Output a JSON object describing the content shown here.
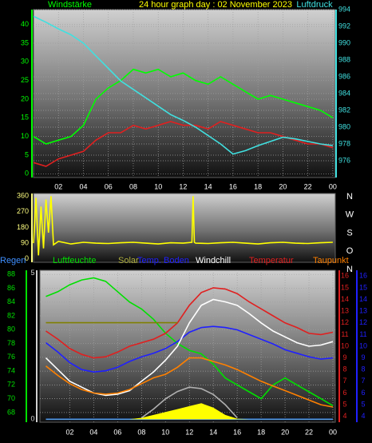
{
  "chart_data": [
    {
      "type": "line",
      "title": "24 hour graph day : 02 November 2023",
      "x": [
        0,
        1,
        2,
        3,
        4,
        5,
        6,
        7,
        8,
        9,
        10,
        11,
        12,
        13,
        14,
        15,
        16,
        17,
        18,
        19,
        20,
        21,
        22,
        23,
        24
      ],
      "xlim": [
        0,
        24.2
      ],
      "xticks": [
        {
          "value": 2,
          "label": "02"
        },
        {
          "value": 4,
          "label": "04"
        },
        {
          "value": 6,
          "label": "06"
        },
        {
          "value": 8,
          "label": "08"
        },
        10,
        12,
        14,
        16,
        18,
        20,
        22,
        {
          "value": 24,
          "label": "00"
        }
      ],
      "ylim": [
        -1,
        44
      ],
      "yticks": [
        0,
        5,
        10,
        15,
        20,
        25,
        30,
        35,
        40
      ],
      "y2lim": [
        974,
        994
      ],
      "y2ticks": [
        976,
        978,
        980,
        982,
        984,
        986,
        988,
        990,
        992,
        994
      ],
      "grid": true,
      "series": [
        {
          "name": "Windstärke",
          "color": "#00ff00",
          "values": [
            10,
            8,
            9,
            10,
            13,
            20,
            23,
            25,
            28,
            27,
            28,
            26,
            27,
            25,
            24,
            26,
            24,
            22,
            20,
            21,
            20,
            19,
            18,
            17,
            15
          ]
        },
        {
          "color": "#e02020",
          "values": [
            3,
            2,
            4,
            5,
            6,
            9,
            11,
            11,
            13,
            12,
            13,
            14,
            13,
            13,
            12,
            14,
            13,
            12,
            11,
            11,
            10,
            9,
            8,
            8,
            7
          ]
        },
        {
          "name": "Luftdruck",
          "color": "#40e0e0",
          "axis": "y2",
          "values": [
            993.2,
            992.5,
            991.7,
            991,
            990,
            988.5,
            987,
            985.5,
            984.5,
            983.5,
            982.5,
            981.5,
            980.8,
            980,
            979,
            978,
            976.8,
            977.2,
            977.8,
            978.3,
            978.8,
            978.6,
            978.3,
            978,
            977.8
          ]
        }
      ]
    },
    {
      "type": "line",
      "x": [
        0,
        0.2,
        0.4,
        0.6,
        0.8,
        1,
        1.2,
        1.4,
        1.6,
        2,
        3,
        4,
        5,
        6,
        7,
        8,
        9,
        10,
        11,
        12,
        12.7,
        12.8,
        12.9,
        13,
        14,
        15,
        16,
        17,
        18,
        19,
        20,
        21,
        22,
        23,
        24
      ],
      "xlim": [
        0,
        24.2
      ],
      "ylim": [
        -20,
        375
      ],
      "yticks": [
        0,
        90,
        180,
        270,
        360
      ],
      "y2lim": [
        35.6,
        375.8
      ],
      "y2ticks": [
        {
          "value": 360,
          "label": "N"
        },
        {
          "value": 270,
          "label": "W"
        },
        {
          "value": 180,
          "label": "S"
        },
        {
          "value": 90,
          "label": "O"
        },
        {
          "value": 0,
          "label": "N"
        }
      ],
      "grid": false,
      "series": [
        {
          "color": "#ffff00",
          "values": [
            90,
            350,
            20,
            300,
            60,
            340,
            150,
            360,
            80,
            100,
            85,
            95,
            90,
            88,
            92,
            95,
            90,
            85,
            92,
            90,
            95,
            360,
            95,
            90,
            88,
            92,
            95,
            90,
            85,
            92,
            95,
            90,
            88,
            92,
            95
          ]
        }
      ]
    },
    {
      "type": "line",
      "x": [
        0,
        1,
        2,
        3,
        4,
        5,
        6,
        7,
        8,
        9,
        10,
        11,
        12,
        13,
        14,
        15,
        16,
        17,
        18,
        19,
        20,
        21,
        22,
        23,
        24
      ],
      "xlim": [
        -0.5,
        24.2
      ],
      "xticks": [
        {
          "value": 2,
          "label": "02"
        },
        {
          "value": 4,
          "label": "04"
        },
        {
          "value": 6,
          "label": "06"
        },
        {
          "value": 8,
          "label": "08"
        },
        10,
        12,
        14,
        16,
        18,
        20,
        22,
        {
          "value": 24,
          "label": "00"
        }
      ],
      "ylim": [
        66.6,
        88.6
      ],
      "yticks": [
        68,
        70,
        72,
        74,
        76,
        78,
        80,
        82,
        84,
        86,
        88
      ],
      "y2lim": [
        3.5,
        16.5
      ],
      "y2ticks": [
        4,
        5,
        6,
        7,
        8,
        9,
        10,
        11,
        12,
        13,
        14,
        15,
        16
      ],
      "y3lim": [
        3.5,
        16.5
      ],
      "y3ticks": [
        4,
        5,
        6,
        7,
        8,
        9,
        10,
        11,
        12,
        13,
        14,
        15,
        16
      ],
      "y4lim": [
        -0.1,
        5.1
      ],
      "y4ticks": [
        0,
        5
      ],
      "grid": true,
      "series": [
        {
          "name": "Regen",
          "color": "#3f8fff",
          "axis": "y4",
          "values": [
            0,
            0,
            0,
            0,
            0,
            0,
            0,
            0,
            0,
            0,
            0,
            0,
            0,
            0,
            0,
            0,
            0,
            0,
            0,
            0,
            0,
            0,
            0,
            0,
            0
          ]
        },
        {
          "name": "Luftfeuchte",
          "color": "#00e000",
          "values": [
            84.8,
            85.5,
            86.5,
            87.2,
            87.5,
            87,
            85.5,
            84,
            83,
            81.5,
            79.5,
            78,
            77,
            76.5,
            75,
            73,
            72,
            71,
            70,
            72,
            73,
            72,
            71,
            70,
            69
          ]
        },
        {
          "name": "Solar",
          "color": "#b0b040",
          "fill": "#ffff00",
          "area": true,
          "axis": "y4",
          "values": [
            0,
            0,
            0,
            0,
            0,
            0,
            0,
            0,
            0.05,
            0.15,
            0.25,
            0.35,
            0.45,
            0.55,
            0.4,
            0.15,
            0.02,
            0,
            0,
            0,
            0,
            0,
            0,
            0,
            0
          ]
        },
        {
          "name": "Temp. Boden",
          "color": "#2020ff",
          "axis": "y3",
          "values": [
            10.3,
            9.5,
            8.6,
            8,
            7.8,
            7.9,
            8.2,
            8.7,
            9.1,
            9.4,
            9.8,
            10.4,
            11.2,
            11.6,
            11.7,
            11.6,
            11.4,
            11,
            10.6,
            10.2,
            9.7,
            9.4,
            9.1,
            8.9,
            9
          ]
        },
        {
          "name": "Windchill",
          "color": "#ffffff",
          "axis": "y2",
          "values": [
            9,
            8,
            7,
            6.5,
            6,
            5.8,
            5.9,
            6.2,
            7,
            7.8,
            8.8,
            10,
            12,
            13.5,
            14,
            13.8,
            13.5,
            12.8,
            12,
            11.3,
            10.8,
            10.3,
            10,
            10.1,
            10.4
          ]
        },
        {
          "name": "Temperatur",
          "color": "#e02020",
          "axis": "y2",
          "values": [
            11.3,
            10.6,
            9.8,
            9.3,
            9,
            9.1,
            9.5,
            10,
            10.3,
            10.6,
            11.1,
            12,
            13.5,
            14.6,
            15,
            14.9,
            14.5,
            13.8,
            13.2,
            12.6,
            12,
            11.6,
            11.1,
            11,
            11.2
          ]
        },
        {
          "name": "Taupunkt",
          "color": "#ff8000",
          "axis": "y2",
          "values": [
            8.3,
            7.5,
            6.8,
            6.3,
            6,
            5.9,
            6,
            6.3,
            6.8,
            7.3,
            7.6,
            8.2,
            9,
            9,
            8.7,
            8.4,
            8,
            7.5,
            7,
            6.6,
            6.2,
            5.8,
            5.4,
            5,
            4.8
          ]
        },
        {
          "color": "#b0b0b0",
          "axis": "y4",
          "values": [
            null,
            null,
            null,
            null,
            null,
            null,
            null,
            null,
            0.05,
            0.35,
            0.7,
            0.95,
            1.1,
            1.05,
            0.85,
            0.5,
            0.05,
            null,
            null,
            null,
            null,
            null,
            null,
            null,
            null
          ]
        },
        {
          "color": "#808000",
          "values": [
            81,
            81,
            81,
            81,
            81,
            81,
            81,
            81,
            81,
            81,
            81,
            81,
            null,
            null,
            null,
            null,
            null,
            null,
            null,
            null,
            null,
            null,
            null,
            null,
            null
          ]
        }
      ]
    }
  ]
}
